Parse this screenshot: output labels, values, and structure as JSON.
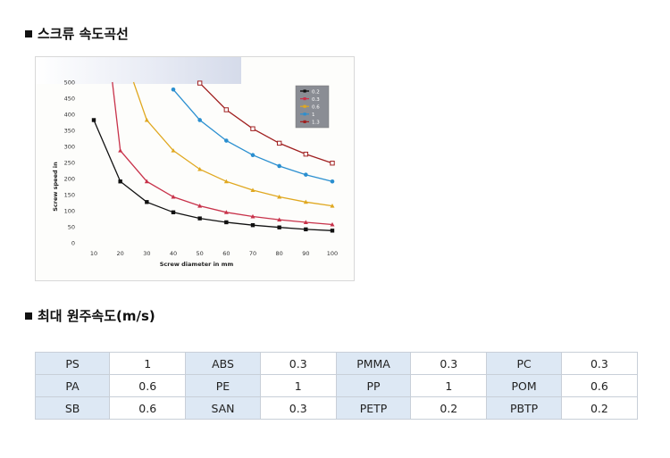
{
  "section1": {
    "title": "스크류 속도곡선"
  },
  "section2": {
    "title": "최대 원주속도(m/s)"
  },
  "chart_data": {
    "type": "line",
    "xlabel": "Screw diameter in mm",
    "ylabel": "Screw speed in",
    "x_ticks": [
      10,
      20,
      30,
      40,
      50,
      60,
      70,
      80,
      90,
      100
    ],
    "y_ticks": [
      0,
      50,
      100,
      150,
      200,
      250,
      300,
      350,
      400,
      450,
      500
    ],
    "xlim": [
      10,
      100
    ],
    "ylim": [
      0,
      500
    ],
    "grid": false,
    "legend_position": "top-right",
    "series": [
      {
        "name": "0.2",
        "color": "#111111",
        "marker": "square",
        "x": [
          10,
          20,
          30,
          40,
          50,
          60,
          70,
          80,
          90,
          100
        ],
        "y": [
          382,
          191,
          127,
          95,
          76,
          64,
          55,
          48,
          42,
          38
        ]
      },
      {
        "name": "0.3",
        "color": "#c8324a",
        "marker": "triangle",
        "x": [
          17,
          20,
          30,
          40,
          50,
          60,
          70,
          80,
          90,
          100
        ],
        "y": [
          500,
          287,
          191,
          143,
          115,
          95,
          82,
          72,
          64,
          57
        ]
      },
      {
        "name": "0.6",
        "color": "#e0a820",
        "marker": "triangle",
        "x": [
          25,
          30,
          40,
          50,
          60,
          70,
          80,
          90,
          100
        ],
        "y": [
          500,
          382,
          287,
          229,
          191,
          164,
          143,
          127,
          115
        ]
      },
      {
        "name": "1",
        "color": "#2a8fd0",
        "marker": "circle",
        "x": [
          40,
          50,
          60,
          70,
          80,
          90,
          100
        ],
        "y": [
          477,
          382,
          318,
          273,
          239,
          212,
          191
        ]
      },
      {
        "name": "1.3",
        "color": "#a02020",
        "marker": "square-open",
        "x": [
          50,
          60,
          70,
          80,
          90,
          100
        ],
        "y": [
          497,
          414,
          355,
          310,
          276,
          248
        ]
      }
    ]
  },
  "table": {
    "rows": [
      [
        {
          "k": "PS",
          "v": "1"
        },
        {
          "k": "ABS",
          "v": "0.3"
        },
        {
          "k": "PMMA",
          "v": "0.3"
        },
        {
          "k": "PC",
          "v": "0.3"
        }
      ],
      [
        {
          "k": "PA",
          "v": "0.6"
        },
        {
          "k": "PE",
          "v": "1"
        },
        {
          "k": "PP",
          "v": "1"
        },
        {
          "k": "POM",
          "v": "0.6"
        }
      ],
      [
        {
          "k": "SB",
          "v": "0.6"
        },
        {
          "k": "SAN",
          "v": "0.3"
        },
        {
          "k": "PETP",
          "v": "0.2"
        },
        {
          "k": "PBTP",
          "v": "0.2"
        }
      ]
    ]
  }
}
